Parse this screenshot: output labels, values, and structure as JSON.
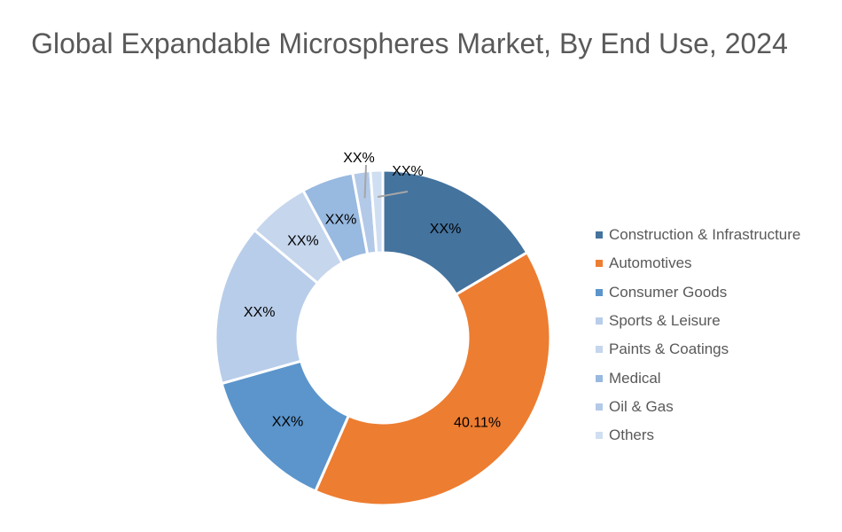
{
  "chart_data": {
    "type": "pie",
    "variant": "donut",
    "title": "Global Expandable Microspheres Market, By End Use, 2024",
    "start_angle_deg": 0,
    "direction": "clockwise",
    "legend_position": "right",
    "slices": [
      {
        "name": "Construction & Infrastructure",
        "value": 16.5,
        "label": "XX%",
        "color": "#44739e"
      },
      {
        "name": "Automotives",
        "value": 40.11,
        "label": "40.11%",
        "color": "#ed7d31"
      },
      {
        "name": "Consumer Goods",
        "value": 14.0,
        "label": "XX%",
        "color": "#5b95cc"
      },
      {
        "name": "Sports & Leisure",
        "value": 15.5,
        "label": "XX%",
        "color": "#b8cde9"
      },
      {
        "name": "Paints & Coatings",
        "value": 6.0,
        "label": "XX%",
        "color": "#c5d6ed"
      },
      {
        "name": "Medical",
        "value": 5.0,
        "label": "XX%",
        "color": "#98b9e0"
      },
      {
        "name": "Oil & Gas",
        "value": 1.7,
        "label": "XX%",
        "color": "#b3c9e8"
      },
      {
        "name": "Others",
        "value": 1.2,
        "label": "XX%",
        "color": "#d0def2"
      }
    ]
  }
}
